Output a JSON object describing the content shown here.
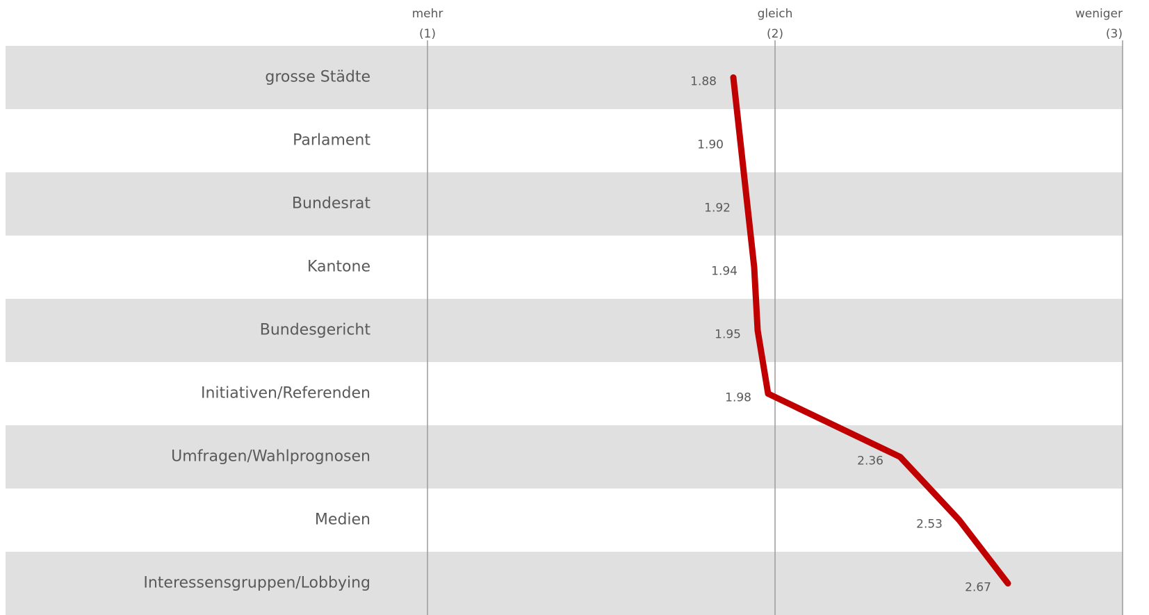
{
  "chart_data": {
    "type": "line",
    "categories": [
      "grosse Städte",
      "Parlament",
      "Bundesrat",
      "Kantone",
      "Bundesgericht",
      "Initiativen/Referenden",
      "Umfragen/Wahlprognosen",
      "Medien",
      "Interessensgruppen/Lobbying"
    ],
    "series": [
      {
        "color": "#c00000",
        "values": [
          1.88,
          1.9,
          1.92,
          1.94,
          1.95,
          1.98,
          2.36,
          2.53,
          2.67
        ],
        "value_labels": [
          "1.88",
          "1.90",
          "1.92",
          "1.94",
          "1.95",
          "1.98",
          "2.36",
          "2.53",
          "2.67"
        ]
      }
    ],
    "xlim": [
      1,
      3
    ],
    "xticks": [
      {
        "value": 1,
        "label": [
          "mehr",
          "(1)"
        ]
      },
      {
        "value": 2,
        "label": [
          "gleich",
          "(2)"
        ]
      },
      {
        "value": 3,
        "label": [
          "weniger",
          "(3)"
        ]
      }
    ],
    "grid": true
  }
}
